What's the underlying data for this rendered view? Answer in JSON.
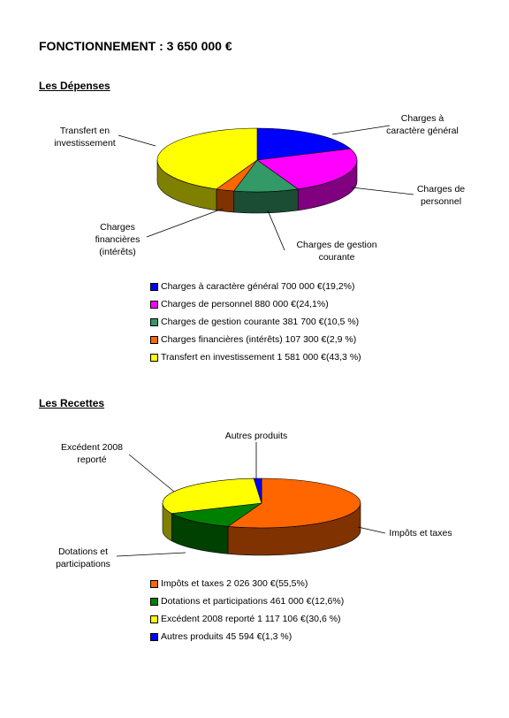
{
  "page": {
    "title": "FONCTIONNEMENT : 3 650 000 €"
  },
  "depenses": {
    "heading": "Les Dépenses",
    "labels": {
      "charges_general": [
        "Charges à",
        "caractère général"
      ],
      "personnel": [
        "Charges de",
        "personnel"
      ],
      "gestion": [
        "Charges de gestion",
        "courante"
      ],
      "financieres": [
        "Charges",
        "financières",
        "(intérêts)"
      ],
      "transfert": [
        "Transfert en",
        "investissement"
      ]
    },
    "legend": [
      "Charges à caractère général  700 000 €(19,2%)",
      "Charges de personnel 880 000 €(24,1%)",
      "Charges de gestion courante   381 700 €(10,5 %)",
      "Charges financières (intérêts) 107 300 €(2,9 %)",
      "Transfert en investissement  1 581 000 €(43,3 %)"
    ]
  },
  "recettes": {
    "heading": "Les Recettes",
    "labels": {
      "impots": [
        "Impôts et taxes"
      ],
      "dotations": [
        "Dotations et",
        "participations"
      ],
      "excedent": [
        "Excédent 2008",
        "reporté"
      ],
      "autres": [
        "Autres produits"
      ]
    },
    "legend": [
      "Impôts et taxes 2 026 300 €(55,5%)",
      "Dotations et participations  461 000 €(12,6%)",
      "Excédent 2008 reporté 1 117 106 €(30,6 %)",
      "Autres produits  45 594 €(1,3 %)"
    ]
  },
  "chart_data": [
    {
      "type": "pie",
      "title": "Les Dépenses",
      "categories": [
        "Charges à caractère général",
        "Charges de personnel",
        "Charges de gestion courante",
        "Charges financières (intérêts)",
        "Transfert en investissement"
      ],
      "values": [
        700000,
        880000,
        381700,
        107300,
        1581000
      ],
      "percents": [
        19.2,
        24.1,
        10.5,
        2.9,
        43.3
      ],
      "colors": [
        "#0000ff",
        "#ff00ff",
        "#339966",
        "#ff6600",
        "#ffff00"
      ],
      "side_colors": [
        "#00007f",
        "#800080",
        "#1a4d33",
        "#803300",
        "#808000"
      ],
      "legend_position": "bottom"
    },
    {
      "type": "pie",
      "title": "Les Recettes",
      "categories": [
        "Impôts et taxes",
        "Dotations et participations",
        "Excédent 2008 reporté",
        "Autres produits"
      ],
      "values": [
        2026300,
        461000,
        1117106,
        45594
      ],
      "percents": [
        55.5,
        12.6,
        30.6,
        1.3
      ],
      "colors": [
        "#ff6600",
        "#008000",
        "#ffff00",
        "#0000ff"
      ],
      "side_colors": [
        "#803300",
        "#004000",
        "#808000",
        "#00007f"
      ],
      "legend_position": "bottom"
    }
  ]
}
